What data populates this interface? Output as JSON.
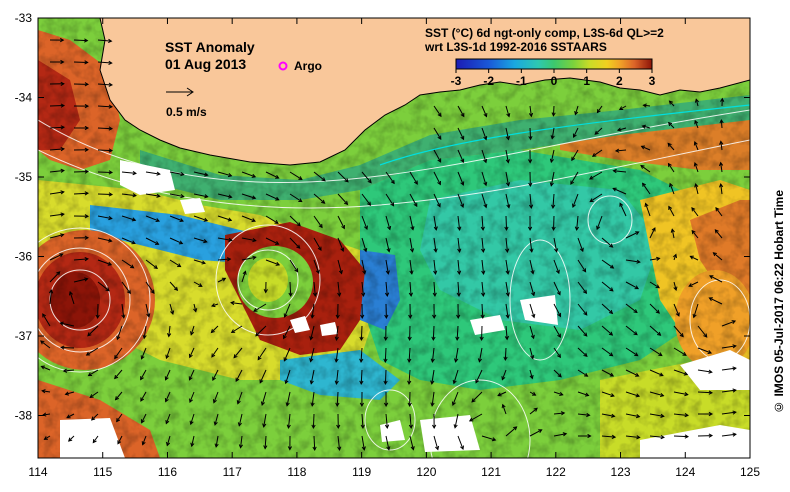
{
  "map": {
    "title": "SST Anomaly",
    "date": "01 Aug 2013",
    "argo_label": "Argo",
    "velocity_scale_label": "0.5 m/s",
    "colorbar": {
      "title_line1": "SST (°C) 6d ngt-only comp, L3S-6d QL>=2",
      "title_line2": "wrt L3S-1d 1992-2016 SSTAARS",
      "ticks": [
        "-3",
        "-2",
        "-1",
        "0",
        "1",
        "2",
        "3"
      ],
      "colors": [
        "#1b1bb4",
        "#1a5ad8",
        "#1aa8e0",
        "#2ec8b0",
        "#3cc86e",
        "#7cd23c",
        "#c8dc28",
        "#f0d020",
        "#f0a028",
        "#dc6428",
        "#b42814",
        "#8c1408"
      ]
    },
    "lon_ticks": [
      "114",
      "115",
      "116",
      "117",
      "118",
      "119",
      "120",
      "121",
      "122",
      "123",
      "124",
      "125"
    ],
    "lat_ticks": [
      "-33",
      "-34",
      "-35",
      "-36",
      "-37",
      "-38"
    ],
    "credit": "© IMOS 05-Jul-2017 06:22 Hobart Time",
    "colors": {
      "land": "#f9c79a",
      "no_data": "#ffffff",
      "coast": "#000000",
      "contour": "#ffffff",
      "argo": "#ff00ff"
    }
  }
}
